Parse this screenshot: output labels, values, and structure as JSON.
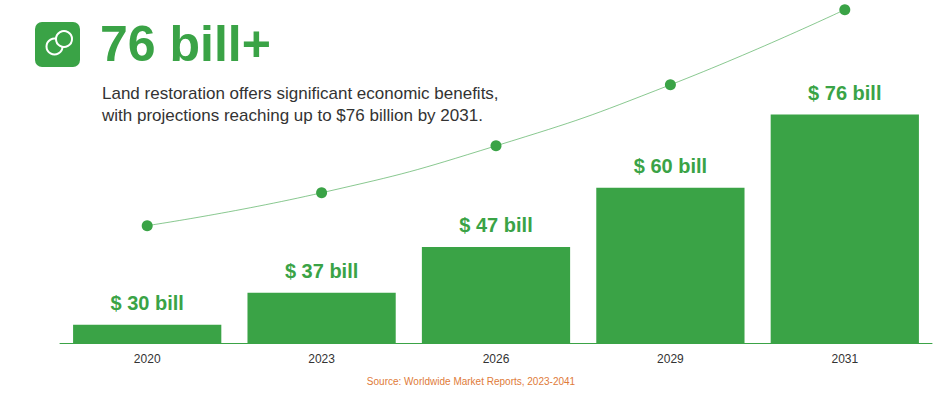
{
  "chart_data": {
    "type": "bar",
    "title": "76 bill+",
    "subtitle": "Land restoration offers significant economic benefits,\nwith projections reaching up to $76 billion by 2031.",
    "source": "Source: Worldwide Market Reports, 2023-2041",
    "categories": [
      "2020",
      "2023",
      "2026",
      "2029",
      "2031"
    ],
    "series": [
      {
        "type": "bar",
        "color": "#3aa346",
        "values": [
          30,
          37,
          47,
          60,
          76
        ],
        "value_labels": [
          "$ 30 bill",
          "$ 37 bill",
          "$ 47 bill",
          "$ 60 bill",
          "$ 76 bill"
        ]
      },
      {
        "type": "line",
        "axis": "y2",
        "color": "#3aa346",
        "marker": "circle",
        "values": [
          30,
          37,
          47,
          60,
          76
        ]
      }
    ],
    "ylim": [
      26,
      100
    ],
    "yticks": [
      26,
      100
    ],
    "y2lim": [
      5,
      77
    ],
    "y2ticks": [
      5,
      77
    ],
    "grid": false,
    "tick_labels": "x",
    "data_labels": true
  }
}
